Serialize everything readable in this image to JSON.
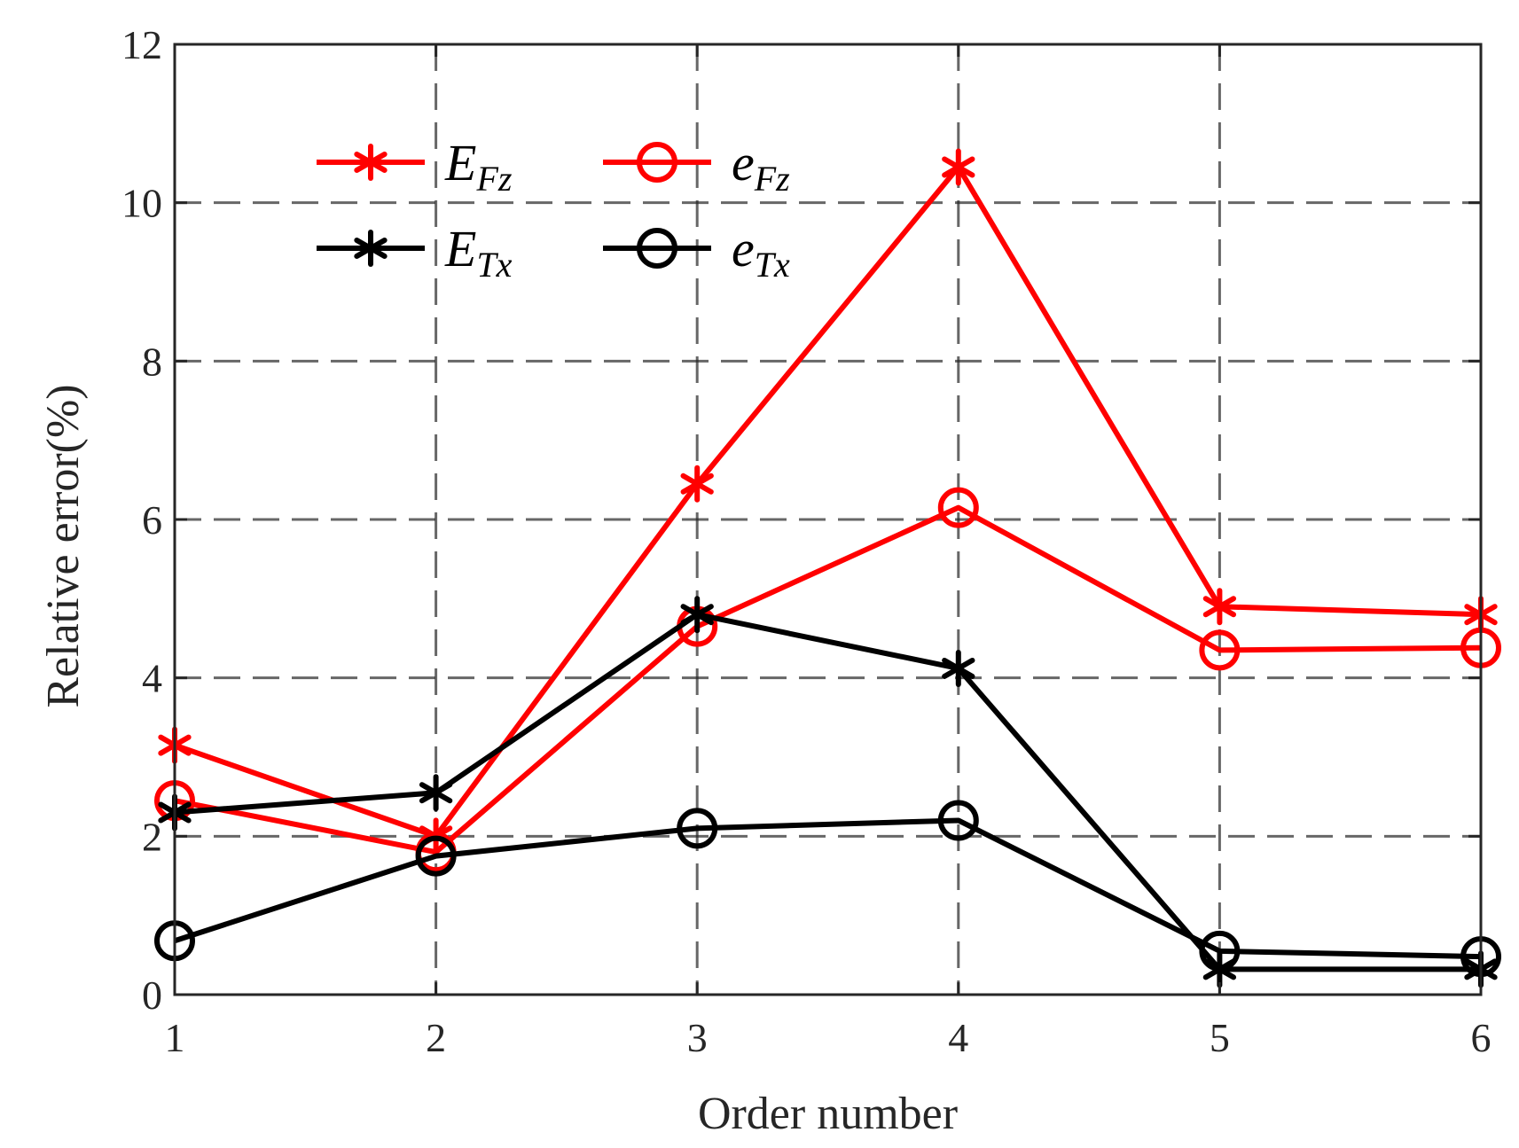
{
  "chart_data": {
    "type": "line",
    "xlabel": "Order number",
    "ylabel": "Relative error(%)",
    "x": [
      1,
      2,
      3,
      4,
      5,
      6
    ],
    "xlim": [
      1,
      6
    ],
    "ylim": [
      0,
      12
    ],
    "xticks": [
      "1",
      "2",
      "3",
      "4",
      "5",
      "6"
    ],
    "yticks": [
      "0",
      "2",
      "4",
      "6",
      "8",
      "10",
      "12"
    ],
    "grid": true,
    "grid_style": "dashed",
    "legend_position": "top-left",
    "legend_columns": 2,
    "series": [
      {
        "key": "EFz",
        "name": "E",
        "name_sub": "Fz",
        "color": "#ff0000",
        "marker": "asterisk",
        "values": [
          3.15,
          2.0,
          6.45,
          10.45,
          4.9,
          4.8
        ]
      },
      {
        "key": "eFz",
        "name": "e",
        "name_sub": "Fz",
        "color": "#ff0000",
        "marker": "circle",
        "values": [
          2.45,
          1.8,
          4.65,
          6.15,
          4.35,
          4.38
        ]
      },
      {
        "key": "ETx",
        "name": "E",
        "name_sub": "Tx",
        "color": "#000000",
        "marker": "asterisk",
        "values": [
          2.3,
          2.55,
          4.8,
          4.12,
          0.32,
          0.32
        ]
      },
      {
        "key": "eTx",
        "name": "e",
        "name_sub": "Tx",
        "color": "#000000",
        "marker": "circle",
        "values": [
          0.68,
          1.75,
          2.1,
          2.2,
          0.55,
          0.48
        ]
      }
    ]
  }
}
